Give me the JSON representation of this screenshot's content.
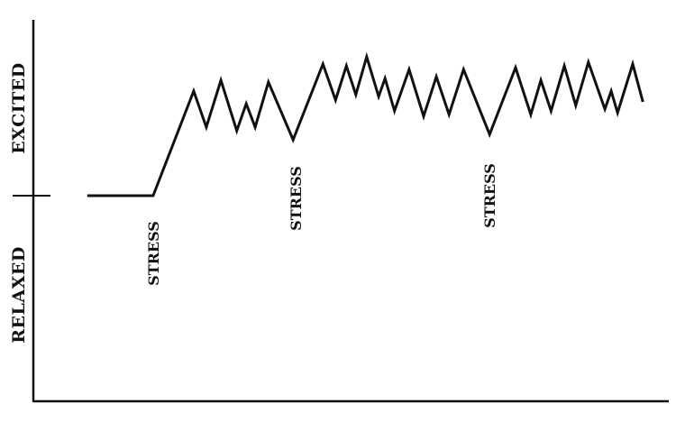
{
  "chart_data": {
    "type": "line",
    "title": "",
    "xlabel": "",
    "ylabel_top": "EXCITED",
    "ylabel_bottom": "RELAXED",
    "xlim": [
      0,
      100
    ],
    "ylim": [
      -1,
      1
    ],
    "baseline": 0,
    "grid": false,
    "line_color": "#111111",
    "series": [
      {
        "x": [
          8.5,
          18.9,
          25.3,
          27.3,
          29.6,
          32.1,
          33.6,
          35.0,
          37.1,
          41.0,
          45.7,
          47.7,
          49.4,
          50.9,
          52.6,
          54.5,
          55.5,
          57.0,
          59.3,
          61.6,
          63.6,
          65.6,
          67.9,
          72.0,
          76.1,
          78.5,
          80.1,
          81.7,
          83.8,
          85.6,
          87.6,
          90.2,
          91.2,
          92.2,
          94.6,
          96.2
        ],
        "y": [
          0,
          0,
          0.58,
          0.38,
          0.64,
          0.36,
          0.51,
          0.38,
          0.63,
          0.31,
          0.73,
          0.53,
          0.72,
          0.56,
          0.77,
          0.55,
          0.65,
          0.47,
          0.7,
          0.44,
          0.66,
          0.45,
          0.7,
          0.34,
          0.71,
          0.45,
          0.64,
          0.47,
          0.72,
          0.5,
          0.74,
          0.48,
          0.58,
          0.46,
          0.73,
          0.52
        ]
      }
    ],
    "annotations": [
      {
        "text": "STRESS",
        "x": 18.9
      },
      {
        "text": "STRESS",
        "x": 41.4
      },
      {
        "text": "STRESS",
        "x": 72.0
      }
    ]
  }
}
